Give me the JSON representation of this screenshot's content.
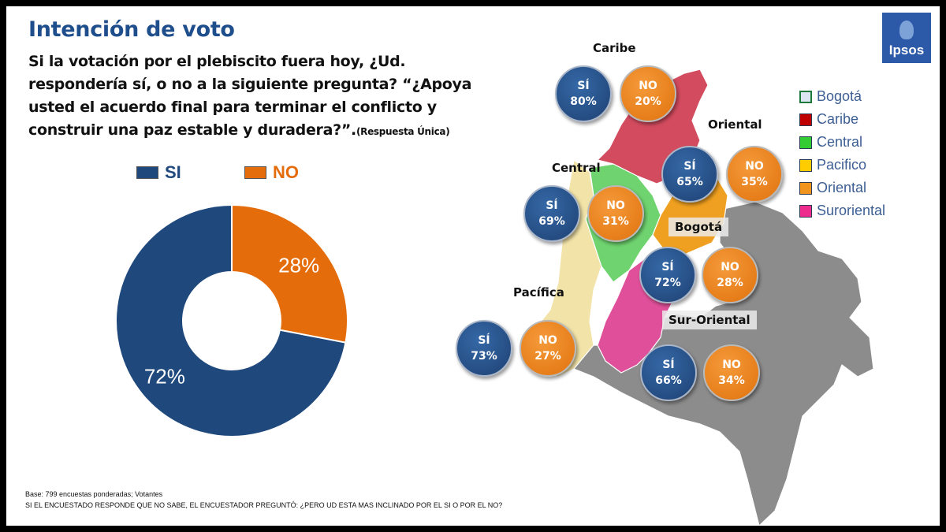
{
  "title": "Intención de voto",
  "question": {
    "main": "Si la votación por el plebiscito fuera hoy, ¿Ud. respondería sí, o no a la siguiente pregunta? “¿Apoya usted el acuerdo final para terminar el conflicto y construir una paz estable y duradera?”.",
    "note": "(Respuesta Única)"
  },
  "logo": {
    "text": "Ipsos"
  },
  "chart_data": {
    "type": "pie",
    "variant": "donut",
    "legend_placement": "top",
    "slices": [
      {
        "name": "SI",
        "value": 72,
        "label": "72%",
        "color": "#1f497d"
      },
      {
        "name": "NO",
        "value": 28,
        "label": "28%",
        "color": "#e46c0a"
      }
    ]
  },
  "map_legend": [
    {
      "label": "Bogotá",
      "color": "#dce6f2",
      "border": "#1e7a3a"
    },
    {
      "label": "Caribe",
      "color": "#c00000"
    },
    {
      "label": "Central",
      "color": "#33cc33"
    },
    {
      "label": "Pacifico",
      "color": "#ffcc00"
    },
    {
      "label": "Oriental",
      "color": "#f0941e"
    },
    {
      "label": "Suroriental",
      "color": "#ee2c8e"
    }
  ],
  "regions": {
    "caribe": {
      "name": "Caribe",
      "si_label": "SÍ",
      "si": "80%",
      "no_label": "NO",
      "no": "20%"
    },
    "oriental": {
      "name": "Oriental",
      "si_label": "SÍ",
      "si": "65%",
      "no_label": "NO",
      "no": "35%"
    },
    "central": {
      "name": "Central",
      "si_label": "SÍ",
      "si": "69%",
      "no_label": "NO",
      "no": "31%"
    },
    "bogota": {
      "name": "Bogotá",
      "si_label": "SÍ",
      "si": "72%",
      "no_label": "NO",
      "no": "28%"
    },
    "pacifica": {
      "name": "Pacífica",
      "si_label": "SÍ",
      "si": "73%",
      "no_label": "NO",
      "no": "27%"
    },
    "suroriental": {
      "name": "Sur-Oriental",
      "si_label": "SÍ",
      "si": "66%",
      "no_label": "NO",
      "no": "34%"
    }
  },
  "footer": {
    "base": "Base: 799 encuestas ponderadas; Votantes",
    "note": "SI EL ENCUESTADO RESPONDE QUE NO SABE, EL ENCUESTADOR PREGUNTÓ: ¿PERO UD ESTA MAS INCLINADO POR EL SI O POR EL NO?"
  }
}
